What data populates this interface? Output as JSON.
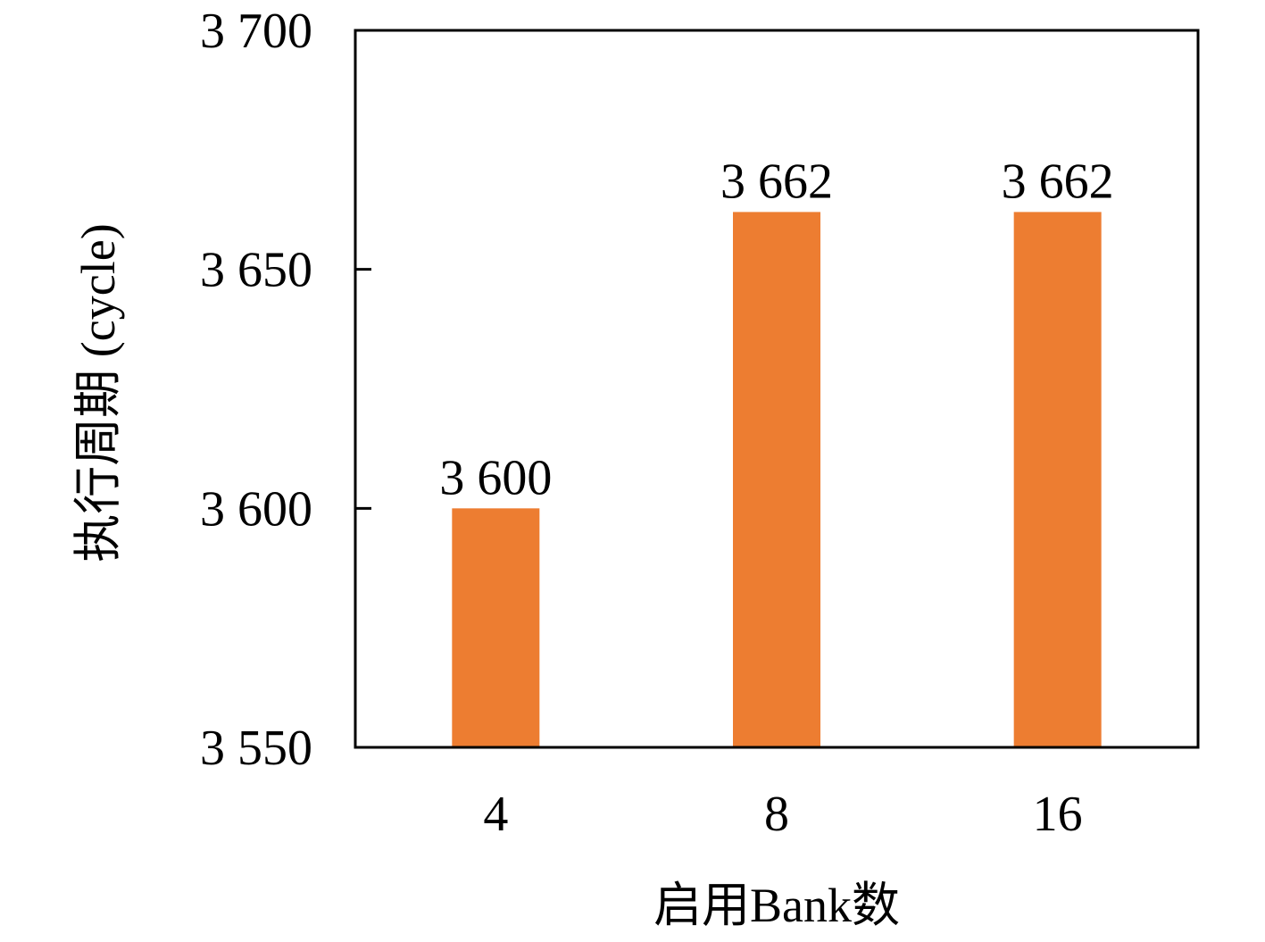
{
  "chart_data": {
    "type": "bar",
    "title": "",
    "xlabel": "启用Bank数",
    "ylabel": "执行周期 (cycle)",
    "categories": [
      "4",
      "8",
      "16"
    ],
    "values": [
      3600,
      3662,
      3662
    ],
    "data_labels": [
      "3 600",
      "3 662",
      "3 662"
    ],
    "ylim": [
      3550,
      3700
    ],
    "yticks": [
      3550,
      3600,
      3650,
      3700
    ],
    "ytick_labels": [
      "3 550",
      "3 600",
      "3 650",
      "3 700"
    ],
    "grid": false,
    "legend": "none",
    "colors": {
      "bar": "#ED7D31",
      "axes": "#000000"
    }
  }
}
